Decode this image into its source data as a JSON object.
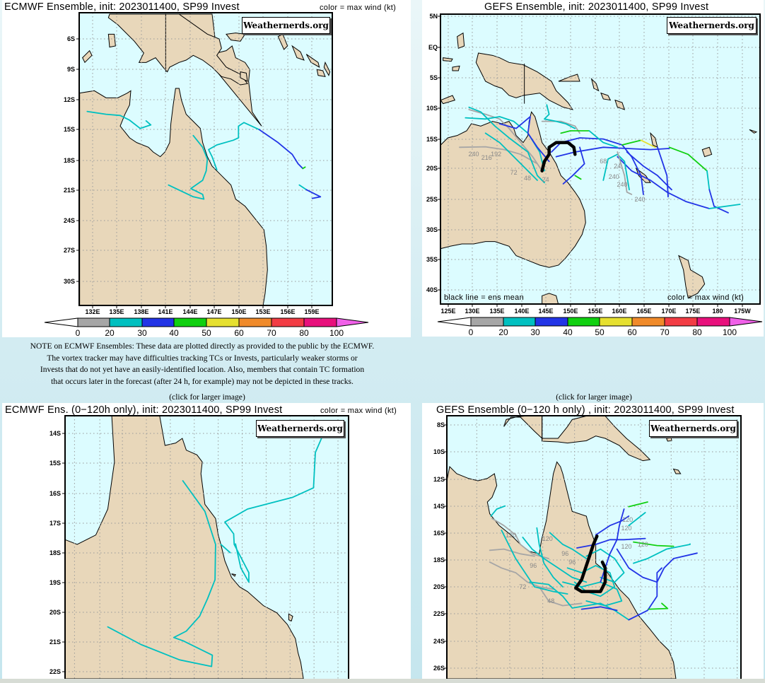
{
  "colors": {
    "ocean": "#dcfcff",
    "land": "#e8d7ba",
    "scale": [
      "#a6a6a6",
      "#00c0c0",
      "#2234e6",
      "#10d010",
      "#e6e030",
      "#f08a2a",
      "#f23c44",
      "#e8107c",
      "#f060e8"
    ],
    "mean_line": "#000000"
  },
  "panels": {
    "ecmwf_full": {
      "title": "ECMWF Ensemble, init: 2023011400, SP99 Invest",
      "color_note": "color = max wind (kt)",
      "watermark": "Weathernerds.org",
      "lat_labels": [
        "6S",
        "9S",
        "12S",
        "15S",
        "18S",
        "21S",
        "24S",
        "27S",
        "30S"
      ],
      "lon_labels": [
        "132E",
        "135E",
        "138E",
        "141E",
        "144E",
        "147E",
        "150E",
        "153E",
        "156E",
        "159E"
      ],
      "colorbar_ticks": [
        "0",
        "20",
        "30",
        "40",
        "50",
        "60",
        "70",
        "80",
        "100"
      ]
    },
    "gefs_full": {
      "title": "GEFS Ensemble, init: 2023011400, SP99 Invest",
      "mean_note": "black line = ens mean",
      "color_note": "color = max wind (kt)",
      "watermark": "Weathernerds.org",
      "lat_labels": [
        "5N",
        "EQ",
        "5S",
        "10S",
        "15S",
        "20S",
        "25S",
        "30S",
        "35S",
        "40S"
      ],
      "lon_labels": [
        "125E",
        "130E",
        "135E",
        "140E",
        "145E",
        "150E",
        "155E",
        "160E",
        "165E",
        "170E",
        "175E",
        "180",
        "175W"
      ],
      "colorbar_ticks": [
        "0",
        "20",
        "30",
        "40",
        "50",
        "60",
        "70",
        "80",
        "100"
      ],
      "track_labels": [
        "240",
        "216",
        "192",
        "72",
        "48",
        "24",
        "68",
        "24",
        "240",
        "240",
        "240"
      ]
    },
    "ecmwf_120h": {
      "title": "ECMWF Ens. (0−120h only), init: 2023011400, SP99 Invest",
      "color_note": "color = max wind (kt)",
      "watermark": "Weathernerds.org",
      "lat_labels": [
        "14S",
        "15S",
        "16S",
        "17S",
        "18S",
        "19S",
        "20S",
        "21S",
        "22S"
      ]
    },
    "gefs_120h": {
      "title": "GEFS Ensemble (0−120 h only) , init: 2023011400, SP99 Invest",
      "watermark": "Weathernerds.org",
      "lat_labels": [
        "8S",
        "10S",
        "12S",
        "14S",
        "16S",
        "18S",
        "20S",
        "22S",
        "24S",
        "26S"
      ],
      "track_labels": [
        "120",
        "120",
        "120",
        "120",
        "120",
        "120",
        "96",
        "96",
        "96",
        "72",
        "48"
      ]
    }
  },
  "note": {
    "lines": [
      "NOTE on ECMWF Ensembles: These data are plotted directly as provided to the public by the ECMWF.",
      "The vortex tracker may have difficulties tracking TCs or Invests, particularly weaker storms or",
      "Invests that do not yet have an easily-identified location. Also, members that contain TC formation",
      "that occurs later in the forecast (after 24 h, for example) may not be depicted in these tracks."
    ]
  },
  "links": {
    "left_click": "(click for larger image)",
    "right_click": "(click for larger image)"
  }
}
